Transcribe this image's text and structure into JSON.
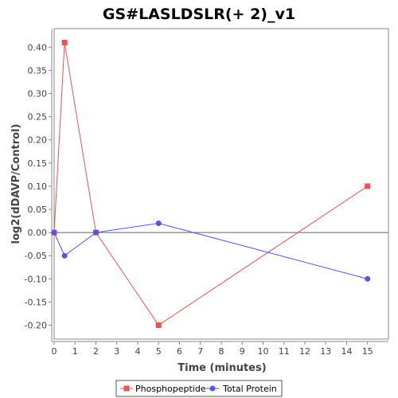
{
  "chart_data": {
    "type": "line",
    "title": "GS#LASLDSLR(+ 2)_v1",
    "xlabel": "Time (minutes)",
    "ylabel": "log2(dDAVP/Control)",
    "xlim": [
      0,
      16
    ],
    "ylim": [
      -0.23,
      0.44
    ],
    "xticks": [
      0,
      1,
      2,
      3,
      4,
      5,
      6,
      7,
      8,
      9,
      10,
      11,
      12,
      13,
      14,
      15
    ],
    "xtick_labels": [
      "0",
      "1",
      "2",
      "3",
      "4",
      "5",
      "6",
      "7",
      "8",
      "9",
      "10",
      "11",
      "12",
      "13",
      "14",
      "15"
    ],
    "yticks": [
      -0.2,
      -0.15,
      -0.1,
      -0.05,
      0.0,
      0.05,
      0.1,
      0.15,
      0.2,
      0.25,
      0.3,
      0.35,
      0.4
    ],
    "ytick_labels": [
      "-0.20",
      "-0.15",
      "-0.10",
      "-0.05",
      "0.00",
      "0.05",
      "0.10",
      "0.15",
      "0.20",
      "0.25",
      "0.30",
      "0.35",
      "0.40"
    ],
    "zero_line": true,
    "grid": false,
    "legend_position": "bottom",
    "series": [
      {
        "name": "Phosphopeptide",
        "color": "#e85555",
        "marker": "square",
        "points": [
          [
            0,
            0.0
          ],
          [
            0.5,
            0.41
          ],
          [
            2,
            0.0
          ],
          [
            5,
            -0.2
          ],
          [
            15,
            0.1
          ]
        ]
      },
      {
        "name": "Total Protein",
        "color": "#5555e8",
        "marker": "circle",
        "points": [
          [
            0,
            0.0
          ],
          [
            0.5,
            -0.05
          ],
          [
            2,
            0.0
          ],
          [
            5,
            0.02
          ],
          [
            15,
            -0.1
          ]
        ]
      }
    ]
  }
}
